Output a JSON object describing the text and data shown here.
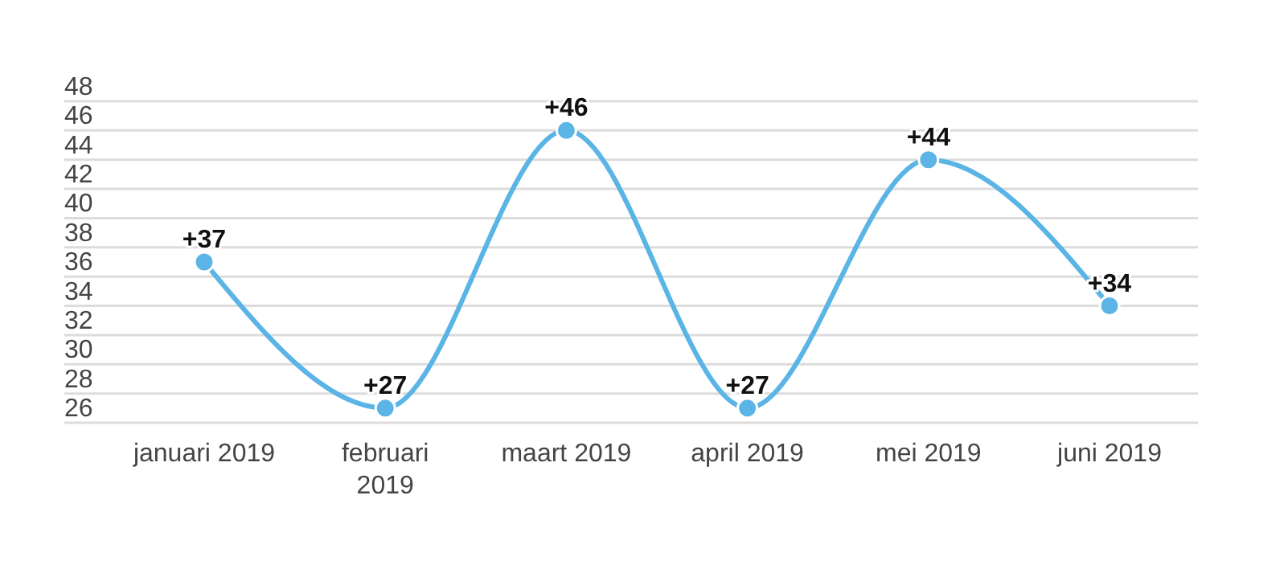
{
  "chart_data": {
    "type": "line",
    "categories": [
      "januari 2019",
      "februari 2019",
      "maart 2019",
      "april 2019",
      "mei 2019",
      "juni 2019"
    ],
    "series": [
      {
        "color": "#5ab4e5",
        "values": [
          37,
          27,
          46,
          27,
          44,
          34
        ],
        "value_labels": [
          "+37",
          "+27",
          "+46",
          "+27",
          "+44",
          "+34"
        ]
      }
    ],
    "ylim": [
      26,
      48
    ],
    "yticks": [
      26,
      28,
      30,
      32,
      34,
      36,
      38,
      40,
      42,
      44,
      46,
      48
    ],
    "grid": "y",
    "marker": "circle",
    "line_style": "solid"
  }
}
